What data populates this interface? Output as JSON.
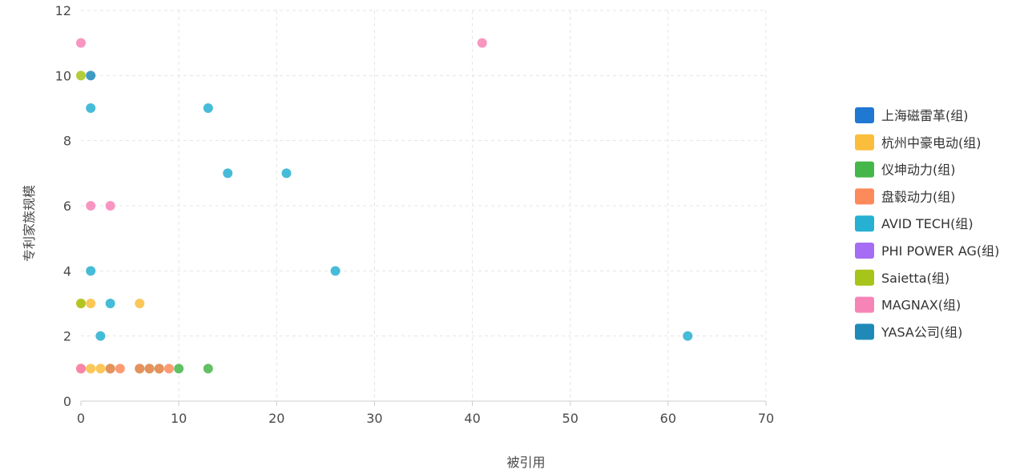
{
  "chart_data": {
    "type": "scatter",
    "xlabel": "被引用",
    "ylabel": "专利家族规模",
    "xlim": [
      0,
      70
    ],
    "ylim": [
      0,
      12
    ],
    "x_ticks": [
      "0",
      "10",
      "20",
      "30",
      "40",
      "50",
      "60",
      "70"
    ],
    "y_ticks": [
      "0",
      "2",
      "4",
      "6",
      "8",
      "10",
      "12"
    ],
    "grid": true,
    "legend_position": "right",
    "series": [
      {
        "name": "上海磁雷革(组)",
        "color": "#1f78d1",
        "points": []
      },
      {
        "name": "杭州中豪电动(组)",
        "color": "#fbbd3c",
        "points": [
          [
            0,
            1
          ],
          [
            1,
            1
          ],
          [
            2,
            1
          ],
          [
            0,
            3
          ],
          [
            1,
            3
          ],
          [
            6,
            3
          ]
        ]
      },
      {
        "name": "仪坤动力(组)",
        "color": "#45b649",
        "points": [
          [
            3,
            1
          ],
          [
            6,
            1
          ],
          [
            7,
            1
          ],
          [
            8,
            1
          ],
          [
            10,
            1
          ],
          [
            13,
            1
          ]
        ]
      },
      {
        "name": "盘毂动力(组)",
        "color": "#fd8a5b",
        "points": [
          [
            0,
            1
          ],
          [
            3,
            1
          ],
          [
            4,
            1
          ],
          [
            6,
            1
          ],
          [
            7,
            1
          ],
          [
            8,
            1
          ],
          [
            9,
            1
          ]
        ]
      },
      {
        "name": "AVID TECH(组)",
        "color": "#26b0d1",
        "points": [
          [
            2,
            2
          ],
          [
            3,
            3
          ],
          [
            1,
            4
          ],
          [
            1,
            9
          ],
          [
            13,
            9
          ],
          [
            15,
            7
          ],
          [
            21,
            7
          ],
          [
            26,
            4
          ],
          [
            62,
            2
          ]
        ]
      },
      {
        "name": "PHI POWER AG(组)",
        "color": "#a56cf4",
        "points": []
      },
      {
        "name": "Saietta(组)",
        "color": "#a6c41a",
        "points": [
          [
            0,
            10
          ],
          [
            0,
            3
          ]
        ]
      },
      {
        "name": "MAGNAX(组)",
        "color": "#f784b6",
        "points": [
          [
            0,
            11
          ],
          [
            0,
            1
          ],
          [
            1,
            6
          ],
          [
            3,
            6
          ],
          [
            41,
            11
          ]
        ]
      },
      {
        "name": "YASA公司(组)",
        "color": "#1f8ab8",
        "points": [
          [
            1,
            10
          ]
        ]
      }
    ]
  }
}
